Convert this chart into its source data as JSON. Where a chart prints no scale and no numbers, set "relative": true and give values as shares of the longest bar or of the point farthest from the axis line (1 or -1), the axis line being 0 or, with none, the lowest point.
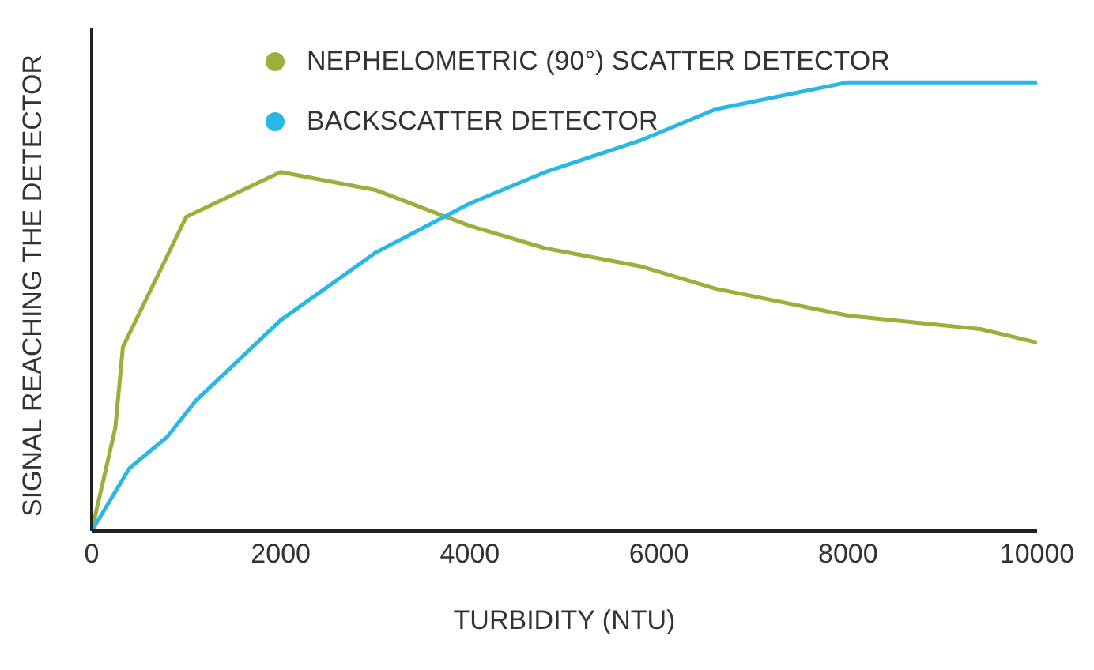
{
  "chart_data": {
    "type": "line",
    "xlabel": "TURBIDITY (NTU)",
    "ylabel": "SIGNAL REACHING THE DETECTOR",
    "relative": true,
    "xlim": [
      0,
      10000
    ],
    "xticks": [
      0,
      2000,
      4000,
      6000,
      8000,
      10000
    ],
    "legend": "top left",
    "marker": "none",
    "line_style": "solid",
    "grid": false,
    "series": [
      {
        "name": "NEPHELOMETRIC (90°) SCATTER DETECTOR",
        "color": "#9bb03a",
        "x": [
          0,
          250,
          330,
          1000,
          2000,
          3000,
          4000,
          4800,
          5800,
          6600,
          8000,
          9400,
          10000
        ],
        "values": [
          0,
          0.23,
          0.41,
          0.7,
          0.8,
          0.76,
          0.68,
          0.63,
          0.59,
          0.54,
          0.48,
          0.45,
          0.42
        ]
      },
      {
        "name": "BACKSCATTER DETECTOR",
        "color": "#29b8e6",
        "x": [
          0,
          400,
          800,
          1100,
          2000,
          3000,
          4000,
          4800,
          5800,
          6600,
          8000,
          10000
        ],
        "values": [
          0,
          0.14,
          0.21,
          0.29,
          0.47,
          0.62,
          0.73,
          0.8,
          0.87,
          0.94,
          1,
          1
        ]
      }
    ]
  }
}
